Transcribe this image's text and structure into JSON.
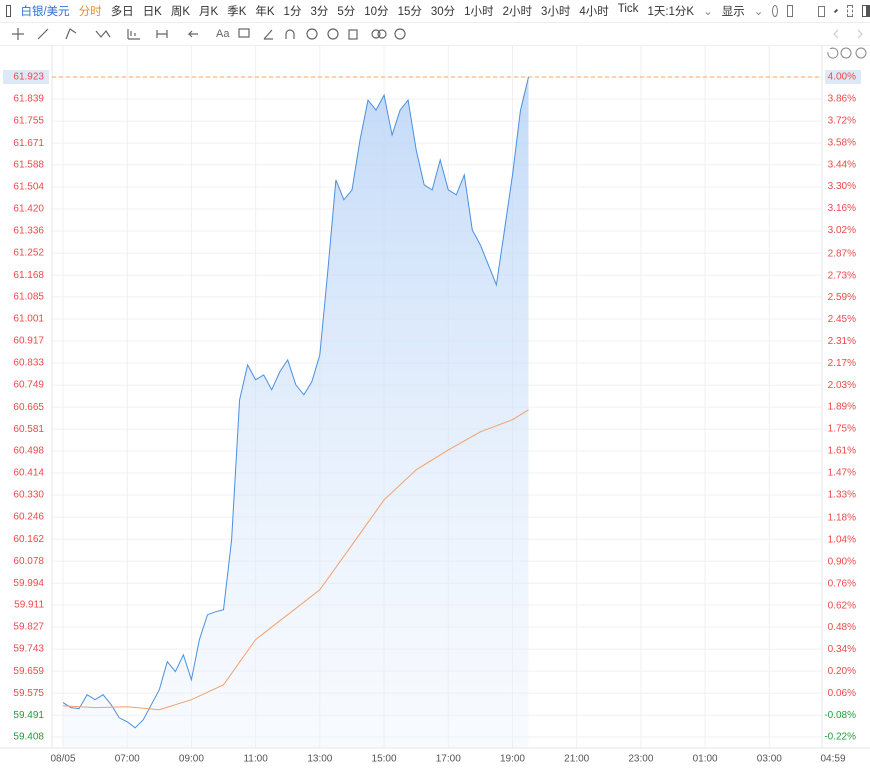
{
  "toolbar": {
    "symbol": "白银/美元",
    "tabs": [
      "分时",
      "多日",
      "日K",
      "周K",
      "月K",
      "季K",
      "年K",
      "1分",
      "3分",
      "5分",
      "10分",
      "15分",
      "30分",
      "1小时",
      "2小时",
      "3小时",
      "4小时",
      "Tick"
    ],
    "range": "1天:1分K",
    "display": "显示",
    "text_tool": "Aa"
  },
  "chart_data": {
    "type": "line",
    "grid": true,
    "up_color": "#f04848",
    "down_color": "#1f9e3a",
    "xlim": [
      "05:00",
      "04:59"
    ],
    "xticks": [
      {
        "value": "05:00",
        "label": "08/05"
      },
      "07:00",
      "09:00",
      "11:00",
      "13:00",
      "15:00",
      "17:00",
      "19:00",
      "21:00",
      "23:00",
      "01:00",
      "03:00",
      "04:59"
    ],
    "ylim": [
      59.366,
      62.045
    ],
    "yticks": [
      61.923,
      61.839,
      61.755,
      61.671,
      61.588,
      61.504,
      {
        "value": 61.42,
        "label": "61.420"
      },
      61.336,
      61.252,
      61.168,
      61.085,
      61.001,
      60.917,
      60.833,
      60.749,
      60.665,
      60.581,
      60.498,
      60.414,
      {
        "value": 60.33,
        "label": "60.330"
      },
      60.246,
      60.162,
      60.078,
      59.994,
      59.911,
      59.827,
      59.743,
      59.659,
      59.575,
      59.491,
      59.408
    ],
    "y2lim": [
      -0.29,
      4.205
    ],
    "y2ticks": [
      {
        "value": 4.0,
        "label": "4.00%"
      },
      {
        "value": 3.86,
        "label": "3.86%"
      },
      {
        "value": 3.72,
        "label": "3.72%"
      },
      {
        "value": 3.58,
        "label": "3.58%"
      },
      {
        "value": 3.44,
        "label": "3.44%"
      },
      {
        "value": 3.3,
        "label": "3.30%"
      },
      {
        "value": 3.16,
        "label": "3.16%"
      },
      {
        "value": 3.02,
        "label": "3.02%"
      },
      {
        "value": 2.87,
        "label": "2.87%"
      },
      {
        "value": 2.73,
        "label": "2.73%"
      },
      {
        "value": 2.59,
        "label": "2.59%"
      },
      {
        "value": 2.45,
        "label": "2.45%"
      },
      {
        "value": 2.31,
        "label": "2.31%"
      },
      {
        "value": 2.17,
        "label": "2.17%"
      },
      {
        "value": 2.03,
        "label": "2.03%"
      },
      {
        "value": 1.89,
        "label": "1.89%"
      },
      {
        "value": 1.75,
        "label": "1.75%"
      },
      {
        "value": 1.61,
        "label": "1.61%"
      },
      {
        "value": 1.47,
        "label": "1.47%"
      },
      {
        "value": 1.33,
        "label": "1.33%"
      },
      {
        "value": 1.18,
        "label": "1.18%"
      },
      {
        "value": 1.04,
        "label": "1.04%"
      },
      {
        "value": 0.9,
        "label": "0.90%"
      },
      {
        "value": 0.76,
        "label": "0.76%"
      },
      {
        "value": 0.62,
        "label": "0.62%"
      },
      {
        "value": 0.48,
        "label": "0.48%"
      },
      {
        "value": 0.34,
        "label": "0.34%"
      },
      {
        "value": 0.2,
        "label": "0.20%"
      },
      {
        "value": 0.06,
        "label": "0.06%"
      },
      {
        "value": -0.08,
        "label": "-0.08%"
      },
      {
        "value": -0.22,
        "label": "-0.22%"
      }
    ],
    "series": [
      {
        "color": "#4a8fe0",
        "fill": true,
        "x": [
          "05:00",
          "05:15",
          "05:30",
          "05:45",
          "06:00",
          "06:15",
          "06:30",
          "06:45",
          "07:00",
          "07:15",
          "07:30",
          "07:45",
          "08:00",
          "08:15",
          "08:30",
          "08:45",
          "09:00",
          "09:15",
          "09:30",
          "09:45",
          "10:00",
          "10:15",
          "10:30",
          "10:45",
          "11:00",
          "11:15",
          "11:30",
          "11:45",
          "12:00",
          "12:15",
          "12:30",
          "12:45",
          "13:00",
          "13:15",
          "13:30",
          "13:45",
          "14:00",
          "14:15",
          "14:30",
          "14:45",
          "15:00",
          "15:15",
          "15:30",
          "15:45",
          "16:00",
          "16:15",
          "16:30",
          "16:45",
          "17:00",
          "17:15",
          "17:30",
          "17:45",
          "18:00",
          "18:15",
          "18:30",
          "18:45",
          "19:00",
          "19:15",
          "19:30"
        ],
        "values": [
          59.539,
          59.52,
          59.516,
          59.569,
          59.55,
          59.569,
          59.531,
          59.481,
          59.466,
          59.443,
          59.474,
          59.531,
          59.588,
          59.695,
          59.657,
          59.721,
          59.626,
          59.779,
          59.874,
          59.885,
          59.893,
          60.159,
          60.693,
          60.826,
          60.769,
          60.788,
          60.731,
          60.799,
          60.845,
          60.75,
          60.712,
          60.761,
          60.864,
          61.188,
          61.531,
          61.455,
          61.493,
          61.683,
          61.835,
          61.797,
          61.854,
          61.702,
          61.797,
          61.835,
          61.645,
          61.512,
          61.493,
          61.607,
          61.493,
          61.474,
          61.55,
          61.34,
          61.283,
          61.207,
          61.131,
          61.34,
          61.55,
          61.797,
          61.923
        ]
      },
      {
        "color": "#f2a06e",
        "fill": false,
        "x": [
          "05:00",
          "06:00",
          "07:00",
          "08:00",
          "09:00",
          "10:00",
          "11:00",
          "12:00",
          "13:00",
          "14:00",
          "15:00",
          "16:00",
          "17:00",
          "18:00",
          "19:00",
          "19:30"
        ],
        "values": [
          59.527,
          59.52,
          59.523,
          59.512,
          59.55,
          59.607,
          59.779,
          59.874,
          59.969,
          60.14,
          60.312,
          60.426,
          60.502,
          60.571,
          60.617,
          60.655
        ]
      }
    ]
  }
}
